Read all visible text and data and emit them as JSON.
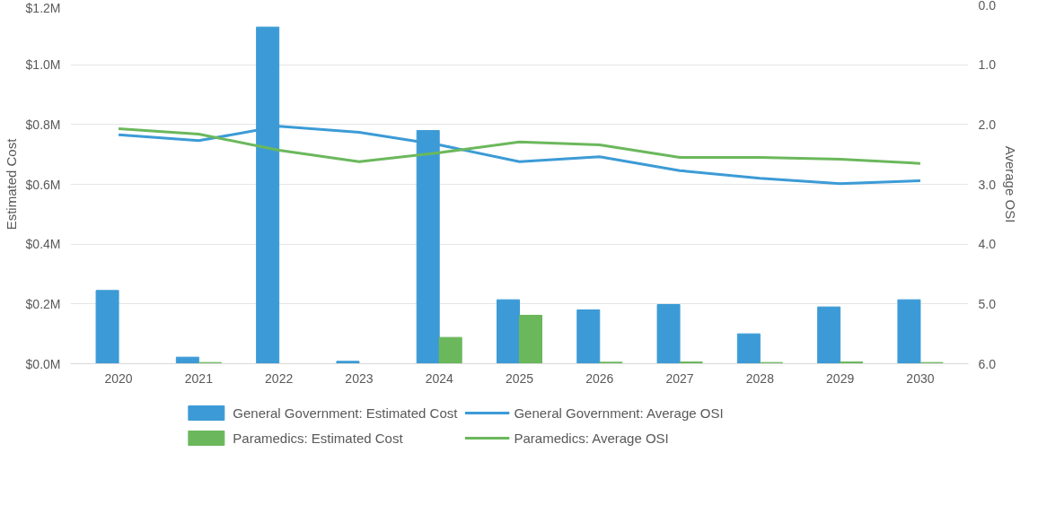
{
  "chart_data": {
    "type": "bar",
    "ylabel": "Estimated Cost",
    "y2label": "Average OSI",
    "categories": [
      "2020",
      "2021",
      "2022",
      "2023",
      "2024",
      "2025",
      "2026",
      "2027",
      "2028",
      "2029",
      "2030"
    ],
    "series": [
      {
        "name": "General Government: Estimated Cost",
        "type": "bar",
        "color": "#3c9bd6",
        "values": [
          0.245,
          0.022,
          1.126,
          0.008,
          0.78,
          0.214,
          0.18,
          0.198,
          0.1,
          0.19,
          0.214
        ]
      },
      {
        "name": "Paramedics: Estimated Cost",
        "type": "bar",
        "color": "#6bb85c",
        "values": [
          0,
          0.004,
          0,
          0,
          0.088,
          0.162,
          0.005,
          0.006,
          0.004,
          0.006,
          0.004
        ]
      },
      {
        "name": "General Government: Average OSI",
        "type": "line",
        "axis": "y2",
        "color": "#3c9bd6",
        "values": [
          2.17,
          2.27,
          2.03,
          2.13,
          2.34,
          2.62,
          2.54,
          2.77,
          2.9,
          2.99,
          2.94
        ]
      },
      {
        "name": "Paramedics: Average OSI",
        "type": "line",
        "axis": "y2",
        "color": "#6bb85c",
        "values": [
          2.07,
          2.16,
          2.43,
          2.62,
          2.47,
          2.29,
          2.34,
          2.55,
          2.55,
          2.58,
          2.65
        ]
      }
    ],
    "ylim": [
      0,
      1.2
    ],
    "yticks": [
      {
        "value": 0,
        "label": "$0.0M"
      },
      {
        "value": 0.2,
        "label": "$0.2M"
      },
      {
        "value": 0.4,
        "label": "$0.4M"
      },
      {
        "value": 0.6,
        "label": "$0.6M"
      },
      {
        "value": 0.8,
        "label": "$0.8M"
      },
      {
        "value": 1.0,
        "label": "$1.0M"
      },
      {
        "value": 1.2,
        "label": "$1.2M"
      }
    ],
    "y2lim": [
      6,
      0
    ],
    "y2ticks": [
      {
        "value": 0,
        "label": "0.0"
      },
      {
        "value": 1,
        "label": "1.0"
      },
      {
        "value": 2,
        "label": "2.0"
      },
      {
        "value": 3,
        "label": "3.0"
      },
      {
        "value": 4,
        "label": "4.0"
      },
      {
        "value": 5,
        "label": "5.0"
      },
      {
        "value": 6,
        "label": "6.0"
      }
    ],
    "grid": "y",
    "legend": "bottom",
    "marker": "none",
    "line_style": "solid"
  }
}
